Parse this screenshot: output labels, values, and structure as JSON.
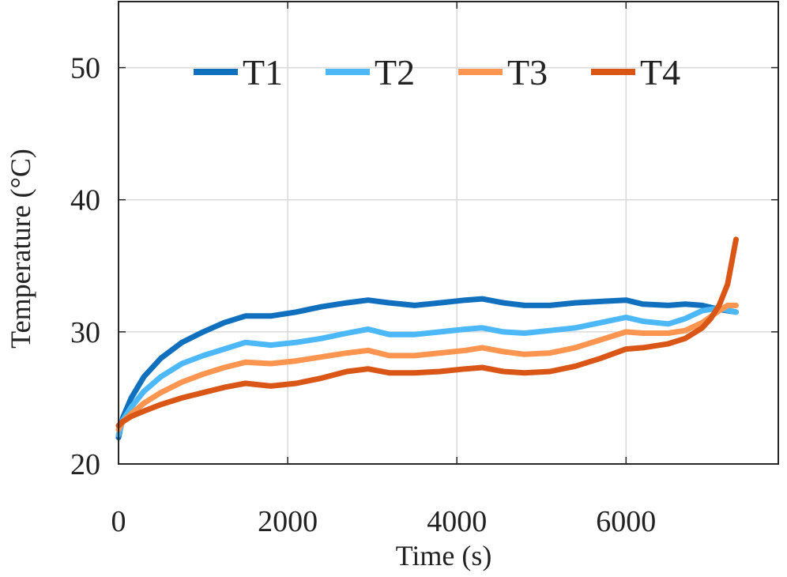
{
  "chart_data": {
    "type": "line",
    "xlabel": "Time (s)",
    "ylabel": "Temperature (°C)",
    "xlim": [
      0,
      7800
    ],
    "ylim": [
      20,
      55
    ],
    "grid": true,
    "legend": "top, horizontal, inside",
    "x_ticks": [
      0,
      2000,
      4000,
      6000
    ],
    "y_ticks": [
      20,
      30,
      40,
      50
    ],
    "x_tick_labels": [
      "0",
      "2000",
      "4000",
      "6000"
    ],
    "y_tick_labels": [
      "20",
      "30",
      "40",
      "50"
    ],
    "series": [
      {
        "name": "T1",
        "color": "#1170BE",
        "points": [
          [
            0,
            22.0
          ],
          [
            50,
            23.5
          ],
          [
            150,
            25.0
          ],
          [
            300,
            26.6
          ],
          [
            500,
            28.0
          ],
          [
            750,
            29.2
          ],
          [
            1000,
            30.0
          ],
          [
            1250,
            30.7
          ],
          [
            1500,
            31.2
          ],
          [
            1800,
            31.2
          ],
          [
            2100,
            31.5
          ],
          [
            2400,
            31.9
          ],
          [
            2700,
            32.2
          ],
          [
            2950,
            32.4
          ],
          [
            3200,
            32.2
          ],
          [
            3500,
            32.0
          ],
          [
            3800,
            32.2
          ],
          [
            4100,
            32.4
          ],
          [
            4300,
            32.5
          ],
          [
            4550,
            32.2
          ],
          [
            4800,
            32.0
          ],
          [
            5100,
            32.0
          ],
          [
            5400,
            32.2
          ],
          [
            5700,
            32.3
          ],
          [
            6000,
            32.4
          ],
          [
            6200,
            32.1
          ],
          [
            6500,
            32.0
          ],
          [
            6700,
            32.1
          ],
          [
            6900,
            32.0
          ],
          [
            7100,
            31.7
          ],
          [
            7300,
            31.5
          ]
        ]
      },
      {
        "name": "T2",
        "color": "#4DB8F8",
        "points": [
          [
            0,
            22.2
          ],
          [
            50,
            23.3
          ],
          [
            150,
            24.3
          ],
          [
            300,
            25.5
          ],
          [
            500,
            26.6
          ],
          [
            750,
            27.6
          ],
          [
            1000,
            28.2
          ],
          [
            1250,
            28.7
          ],
          [
            1500,
            29.2
          ],
          [
            1800,
            29.0
          ],
          [
            2100,
            29.2
          ],
          [
            2400,
            29.5
          ],
          [
            2700,
            29.9
          ],
          [
            2950,
            30.2
          ],
          [
            3200,
            29.8
          ],
          [
            3500,
            29.8
          ],
          [
            3800,
            30.0
          ],
          [
            4100,
            30.2
          ],
          [
            4300,
            30.3
          ],
          [
            4550,
            30.0
          ],
          [
            4800,
            29.9
          ],
          [
            5100,
            30.1
          ],
          [
            5400,
            30.3
          ],
          [
            5700,
            30.7
          ],
          [
            6000,
            31.1
          ],
          [
            6200,
            30.8
          ],
          [
            6500,
            30.6
          ],
          [
            6700,
            31.0
          ],
          [
            6900,
            31.6
          ],
          [
            7100,
            31.8
          ],
          [
            7300,
            31.5
          ]
        ]
      },
      {
        "name": "T3",
        "color": "#FB9550",
        "points": [
          [
            0,
            22.6
          ],
          [
            50,
            23.2
          ],
          [
            150,
            23.8
          ],
          [
            300,
            24.6
          ],
          [
            500,
            25.4
          ],
          [
            750,
            26.2
          ],
          [
            1000,
            26.8
          ],
          [
            1250,
            27.3
          ],
          [
            1500,
            27.7
          ],
          [
            1800,
            27.6
          ],
          [
            2100,
            27.8
          ],
          [
            2400,
            28.1
          ],
          [
            2700,
            28.4
          ],
          [
            2950,
            28.6
          ],
          [
            3200,
            28.2
          ],
          [
            3500,
            28.2
          ],
          [
            3800,
            28.4
          ],
          [
            4100,
            28.6
          ],
          [
            4300,
            28.8
          ],
          [
            4550,
            28.5
          ],
          [
            4800,
            28.3
          ],
          [
            5100,
            28.4
          ],
          [
            5400,
            28.8
          ],
          [
            5700,
            29.4
          ],
          [
            6000,
            30.0
          ],
          [
            6200,
            29.9
          ],
          [
            6500,
            29.9
          ],
          [
            6700,
            30.1
          ],
          [
            6900,
            30.7
          ],
          [
            7100,
            31.6
          ],
          [
            7200,
            32.0
          ],
          [
            7300,
            32.0
          ]
        ]
      },
      {
        "name": "T4",
        "color": "#DA5617",
        "points": [
          [
            0,
            22.9
          ],
          [
            50,
            23.2
          ],
          [
            150,
            23.6
          ],
          [
            300,
            24.0
          ],
          [
            500,
            24.5
          ],
          [
            750,
            25.0
          ],
          [
            1000,
            25.4
          ],
          [
            1250,
            25.8
          ],
          [
            1500,
            26.1
          ],
          [
            1800,
            25.9
          ],
          [
            2100,
            26.1
          ],
          [
            2400,
            26.5
          ],
          [
            2700,
            27.0
          ],
          [
            2950,
            27.2
          ],
          [
            3200,
            26.9
          ],
          [
            3500,
            26.9
          ],
          [
            3800,
            27.0
          ],
          [
            4100,
            27.2
          ],
          [
            4300,
            27.3
          ],
          [
            4550,
            27.0
          ],
          [
            4800,
            26.9
          ],
          [
            5100,
            27.0
          ],
          [
            5400,
            27.4
          ],
          [
            5700,
            28.0
          ],
          [
            6000,
            28.7
          ],
          [
            6200,
            28.8
          ],
          [
            6500,
            29.1
          ],
          [
            6700,
            29.5
          ],
          [
            6900,
            30.3
          ],
          [
            7000,
            31.0
          ],
          [
            7100,
            32.0
          ],
          [
            7200,
            33.6
          ],
          [
            7300,
            37.0
          ]
        ]
      }
    ]
  }
}
